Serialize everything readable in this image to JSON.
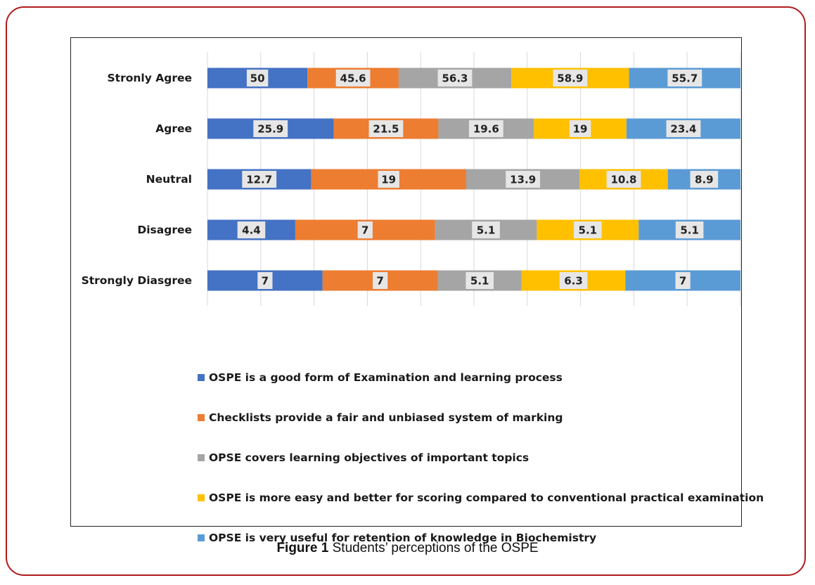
{
  "caption": {
    "label": "Figure 1",
    "text": "Students’ perceptions of the OSPE"
  },
  "chart_data": {
    "type": "bar",
    "orientation": "horizontal",
    "stacked": true,
    "title": "",
    "xlabel": "",
    "ylabel": "",
    "grid": true,
    "legend_position": "bottom",
    "categories": [
      "Stronly Agree",
      "Agree",
      "Neutral",
      "Disagree",
      "Strongly Diasgree"
    ],
    "series": [
      {
        "name": "OSPE is a good form of Examination and learning process",
        "color": "#4472c4",
        "values": [
          50,
          25.9,
          12.7,
          4.4,
          7
        ]
      },
      {
        "name": "Checklists provide a fair and unbiased system of marking",
        "color": "#ed7d31",
        "values": [
          45.6,
          21.5,
          19,
          7,
          7
        ]
      },
      {
        "name": "OPSE covers learning objectives of important topics",
        "color": "#a5a5a5",
        "values": [
          56.3,
          19.6,
          13.9,
          5.1,
          5.1
        ]
      },
      {
        "name": "OSPE is more easy and better for scoring compared to conventional practical examination",
        "color": "#ffc000",
        "values": [
          58.9,
          19,
          10.8,
          5.1,
          6.3
        ]
      },
      {
        "name": "OPSE is very useful for retention of knowledge in Biochemistry",
        "color": "#5b9bd5",
        "values": [
          55.7,
          23.4,
          8.9,
          5.1,
          7
        ]
      }
    ]
  }
}
